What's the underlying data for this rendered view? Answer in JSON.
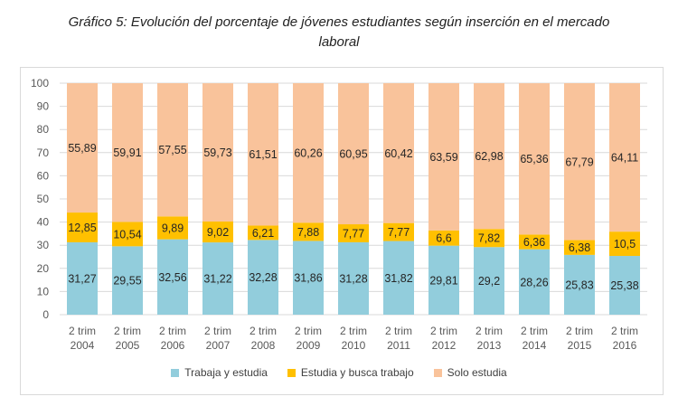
{
  "title_lines": [
    "Gráfico 5: Evolución del porcentaje de jóvenes estudiantes según inserción en el mercado",
    "laboral"
  ],
  "colors": {
    "trabaja": "#92CDDC",
    "busca": "#FFC000",
    "solo": "#F9C39B",
    "grid": "#d9d9d9",
    "axis_text": "#595959",
    "label_text": "#262626"
  },
  "chart_data": {
    "type": "bar",
    "stacked": true,
    "title": "Gráfico 5: Evolución del porcentaje de jóvenes estudiantes según inserción en el mercado laboral",
    "categories": [
      [
        "2 trim",
        "2004"
      ],
      [
        "2 trim",
        "2005"
      ],
      [
        "2 trim",
        "2006"
      ],
      [
        "2 trim",
        "2007"
      ],
      [
        "2 trim",
        "2008"
      ],
      [
        "2 trim",
        "2009"
      ],
      [
        "2 trim",
        "2010"
      ],
      [
        "2 trim",
        "2011"
      ],
      [
        "2 trim",
        "2012"
      ],
      [
        "2 trim",
        "2013"
      ],
      [
        "2 trim",
        "2014"
      ],
      [
        "2 trim",
        "2015"
      ],
      [
        "2 trim",
        "2016"
      ]
    ],
    "series": [
      {
        "name": "Trabaja y estudia",
        "color": "#92CDDC",
        "values": [
          31.27,
          29.55,
          32.56,
          31.22,
          32.28,
          31.86,
          31.28,
          31.82,
          29.81,
          29.2,
          28.26,
          25.83,
          25.38
        ],
        "labels": [
          "31,27",
          "29,55",
          "32,56",
          "31,22",
          "32,28",
          "31,86",
          "31,28",
          "31,82",
          "29,81",
          "29,2",
          "28,26",
          "25,83",
          "25,38"
        ]
      },
      {
        "name": "Estudia y busca trabajo",
        "color": "#FFC000",
        "values": [
          12.85,
          10.54,
          9.89,
          9.02,
          6.21,
          7.88,
          7.77,
          7.77,
          6.6,
          7.82,
          6.36,
          6.38,
          10.5
        ],
        "labels": [
          "12,85",
          "10,54",
          "9,89",
          "9,02",
          "6,21",
          "7,88",
          "7,77",
          "7,77",
          "6,6",
          "7,82",
          "6,36",
          "6,38",
          "10,5"
        ]
      },
      {
        "name": "Solo estudia",
        "color": "#F9C39B",
        "values": [
          55.89,
          59.91,
          57.55,
          59.73,
          61.51,
          60.26,
          60.95,
          60.42,
          63.59,
          62.98,
          65.36,
          67.79,
          64.11
        ],
        "labels": [
          "55,89",
          "59,91",
          "57,55",
          "59,73",
          "61,51",
          "60,26",
          "60,95",
          "60,42",
          "63,59",
          "62,98",
          "65,36",
          "67,79",
          "64,11"
        ]
      }
    ],
    "y_ticks": [
      "0",
      "10",
      "20",
      "30",
      "40",
      "50",
      "60",
      "70",
      "80",
      "90",
      "100"
    ],
    "ylim": [
      0,
      100
    ],
    "grid": true,
    "legend_position": "bottom"
  }
}
